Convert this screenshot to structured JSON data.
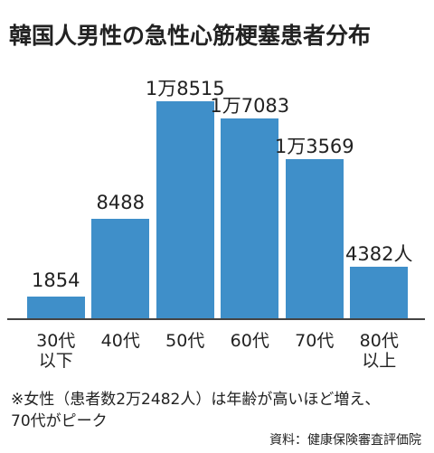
{
  "chart_data": {
    "type": "bar",
    "title": "韓国人男性の急性心筋梗塞患者分布",
    "categories": [
      "30代\n以下",
      "40代",
      "50代",
      "60代",
      "70代",
      "80代\n以上"
    ],
    "values": [
      1854,
      8488,
      18515,
      17083,
      13569,
      4382
    ],
    "value_labels": [
      "1854",
      "8488",
      "1万8515",
      "1万7083",
      "1万3569",
      "4382人"
    ],
    "color": "#3f8fc9",
    "note": "※女性（患者数2万2482人）は年齢が高いほど増え、\n70代がピーク",
    "source": "資料：健康保険審査評価院"
  }
}
